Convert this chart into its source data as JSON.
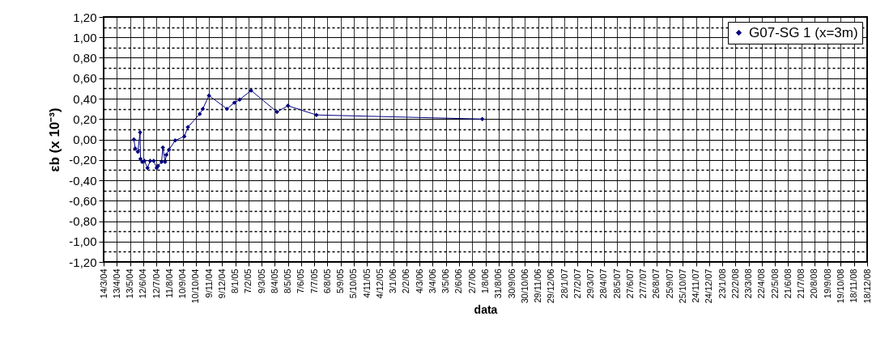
{
  "chart_data": {
    "type": "line",
    "xlabel": "data",
    "ylabel": "εb (x 10⁻³)",
    "x": [
      "2004-05-22",
      "2004-05-25",
      "2004-05-31",
      "2004-06-05",
      "2004-06-06",
      "2004-06-10",
      "2004-06-15",
      "2004-06-22",
      "2004-06-28",
      "2004-07-06",
      "2004-07-13",
      "2004-07-16",
      "2004-07-24",
      "2004-07-27",
      "2004-08-01",
      "2004-08-04",
      "2004-08-10",
      "2004-08-24",
      "2004-09-14",
      "2004-09-22",
      "2004-10-19",
      "2004-10-26",
      "2004-11-09",
      "2004-12-20",
      "2005-01-06",
      "2005-01-18",
      "2005-02-13",
      "2005-04-13",
      "2005-05-08",
      "2005-07-12",
      "2006-07-25"
    ],
    "series": [
      {
        "name": "G07-SG 1 (x=3m)",
        "color": "#000080",
        "values": [
          0.0,
          -0.09,
          -0.12,
          0.07,
          -0.19,
          -0.22,
          -0.21,
          -0.28,
          -0.21,
          -0.21,
          -0.28,
          -0.26,
          -0.22,
          -0.08,
          -0.22,
          -0.15,
          -0.1,
          -0.01,
          0.03,
          0.12,
          0.25,
          0.3,
          0.43,
          0.3,
          0.36,
          0.39,
          0.48,
          0.27,
          0.33,
          0.24,
          0.2
        ]
      }
    ],
    "xlim": [
      "2004-03-14",
      "2008-12-18"
    ],
    "xticks": [
      {
        "value": "2004-03-14",
        "label": "14/3/04"
      },
      {
        "value": "2004-04-13",
        "label": "13/4/04"
      },
      {
        "value": "2004-05-13",
        "label": "13/5/04"
      },
      {
        "value": "2004-06-12",
        "label": "12/6/04"
      },
      {
        "value": "2004-07-12",
        "label": "12/7/04"
      },
      {
        "value": "2004-08-11",
        "label": "11/8/04"
      },
      {
        "value": "2004-09-10",
        "label": "10/9/04"
      },
      {
        "value": "2004-10-10",
        "label": "10/10/04"
      },
      {
        "value": "2004-11-09",
        "label": "9/11/04"
      },
      {
        "value": "2004-12-09",
        "label": "9/12/04"
      },
      {
        "value": "2005-01-08",
        "label": "8/1/05"
      },
      {
        "value": "2005-02-07",
        "label": "7/2/05"
      },
      {
        "value": "2005-03-09",
        "label": "9/3/05"
      },
      {
        "value": "2005-04-08",
        "label": "8/4/05"
      },
      {
        "value": "2005-05-08",
        "label": "8/5/05"
      },
      {
        "value": "2005-06-07",
        "label": "7/6/05"
      },
      {
        "value": "2005-07-07",
        "label": "7/7/05"
      },
      {
        "value": "2005-08-06",
        "label": "6/8/05"
      },
      {
        "value": "2005-09-05",
        "label": "5/9/05"
      },
      {
        "value": "2005-10-05",
        "label": "5/10/05"
      },
      {
        "value": "2005-11-04",
        "label": "4/11/05"
      },
      {
        "value": "2005-12-04",
        "label": "4/12/05"
      },
      {
        "value": "2006-01-03",
        "label": "3/1/06"
      },
      {
        "value": "2006-02-02",
        "label": "2/2/06"
      },
      {
        "value": "2006-03-04",
        "label": "4/3/06"
      },
      {
        "value": "2006-04-03",
        "label": "3/4/06"
      },
      {
        "value": "2006-05-03",
        "label": "3/5/06"
      },
      {
        "value": "2006-06-02",
        "label": "2/6/06"
      },
      {
        "value": "2006-07-02",
        "label": "2/7/06"
      },
      {
        "value": "2006-08-01",
        "label": "1/8/06"
      },
      {
        "value": "2006-08-31",
        "label": "31/8/06"
      },
      {
        "value": "2006-09-30",
        "label": "30/9/06"
      },
      {
        "value": "2006-10-30",
        "label": "30/10/06"
      },
      {
        "value": "2006-11-29",
        "label": "29/11/06"
      },
      {
        "value": "2006-12-29",
        "label": "29/12/06"
      },
      {
        "value": "2007-01-28",
        "label": "28/1/07"
      },
      {
        "value": "2007-02-27",
        "label": "27/2/07"
      },
      {
        "value": "2007-03-29",
        "label": "29/3/07"
      },
      {
        "value": "2007-04-28",
        "label": "28/4/07"
      },
      {
        "value": "2007-05-28",
        "label": "28/5/07"
      },
      {
        "value": "2007-06-27",
        "label": "27/6/07"
      },
      {
        "value": "2007-07-27",
        "label": "27/7/07"
      },
      {
        "value": "2007-08-26",
        "label": "26/8/07"
      },
      {
        "value": "2007-09-25",
        "label": "25/9/07"
      },
      {
        "value": "2007-10-25",
        "label": "25/10/07"
      },
      {
        "value": "2007-11-24",
        "label": "24/11/07"
      },
      {
        "value": "2007-12-24",
        "label": "24/12/07"
      },
      {
        "value": "2008-01-23",
        "label": "23/1/08"
      },
      {
        "value": "2008-02-22",
        "label": "22/2/08"
      },
      {
        "value": "2008-03-23",
        "label": "23/3/08"
      },
      {
        "value": "2008-04-22",
        "label": "22/4/08"
      },
      {
        "value": "2008-05-22",
        "label": "22/5/08"
      },
      {
        "value": "2008-06-21",
        "label": "21/6/08"
      },
      {
        "value": "2008-07-21",
        "label": "21/7/08"
      },
      {
        "value": "2008-08-20",
        "label": "20/8/08"
      },
      {
        "value": "2008-09-19",
        "label": "19/9/08"
      },
      {
        "value": "2008-10-19",
        "label": "19/10/08"
      },
      {
        "value": "2008-11-18",
        "label": "18/11/08"
      },
      {
        "value": "2008-12-18",
        "label": "18/12/08"
      }
    ],
    "ylim": [
      -1.2,
      1.2
    ],
    "yticks": [
      {
        "value": -1.2,
        "label": "-1,20"
      },
      {
        "value": -1.1,
        "label": null
      },
      {
        "value": -1.0,
        "label": "-1,00"
      },
      {
        "value": -0.9,
        "label": null
      },
      {
        "value": -0.8,
        "label": "-0,80"
      },
      {
        "value": -0.7,
        "label": null
      },
      {
        "value": -0.6,
        "label": "-0,60"
      },
      {
        "value": -0.5,
        "label": null
      },
      {
        "value": -0.4,
        "label": "-0,40"
      },
      {
        "value": -0.3,
        "label": null
      },
      {
        "value": -0.2,
        "label": "-0,20"
      },
      {
        "value": -0.1,
        "label": null
      },
      {
        "value": 0,
        "label": "0,00"
      },
      {
        "value": 0.1,
        "label": null
      },
      {
        "value": 0.2,
        "label": "0,20"
      },
      {
        "value": 0.3,
        "label": null
      },
      {
        "value": 0.4,
        "label": "0,40"
      },
      {
        "value": 0.5,
        "label": null
      },
      {
        "value": 0.6,
        "label": "0,60"
      },
      {
        "value": 0.7,
        "label": null
      },
      {
        "value": 0.8,
        "label": "0,80"
      },
      {
        "value": 0.9,
        "label": null
      },
      {
        "value": 1.0,
        "label": "1,00"
      },
      {
        "value": 1.1,
        "label": null
      },
      {
        "value": 1.2,
        "label": "1,20"
      }
    ],
    "grid": true,
    "legend": "top right",
    "marker": "diamond",
    "line_style": "solid"
  }
}
